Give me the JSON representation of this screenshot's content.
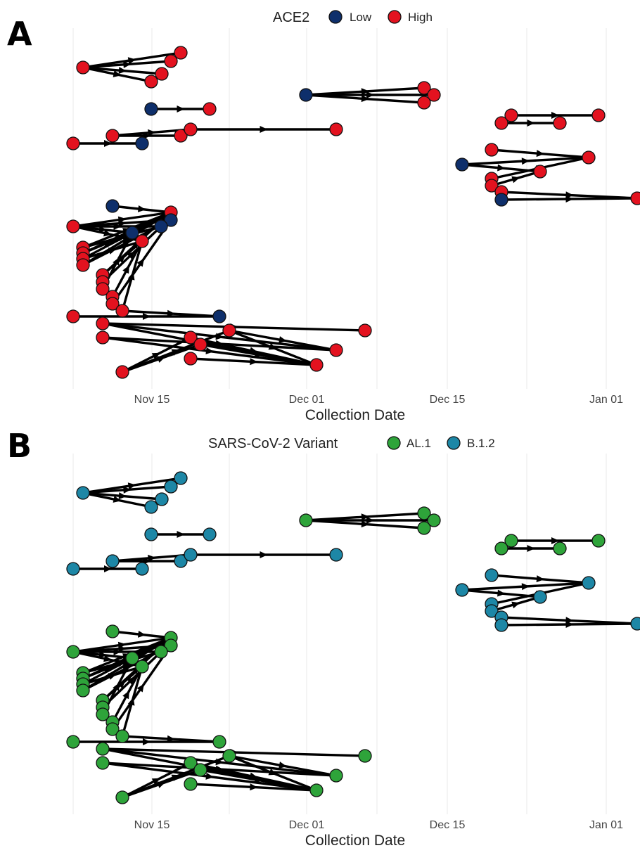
{
  "chart_data": [
    {
      "panel": "A",
      "type": "scatter",
      "legend": {
        "title": "ACE2",
        "position": "top",
        "entries": [
          {
            "label": "Low",
            "color": "#0e2f6b"
          },
          {
            "label": "High",
            "color": "#e3121f"
          }
        ]
      },
      "xlabel": "Collection Date",
      "x_ticks": [
        "Nov 15",
        "Dec 01",
        "Dec 15",
        "Jan 01"
      ],
      "grid": true
    },
    {
      "panel": "B",
      "type": "scatter",
      "legend": {
        "title": "SARS-CoV-2 Variant",
        "position": "top",
        "entries": [
          {
            "label": "AL.1",
            "color": "#2ea43a"
          },
          {
            "label": "B.1.2",
            "color": "#1d87a6"
          }
        ]
      },
      "xlabel": "Collection Date",
      "x_ticks": [
        "Nov 15",
        "Dec 01",
        "Dec 15",
        "Jan 01"
      ],
      "grid": true
    }
  ]
}
